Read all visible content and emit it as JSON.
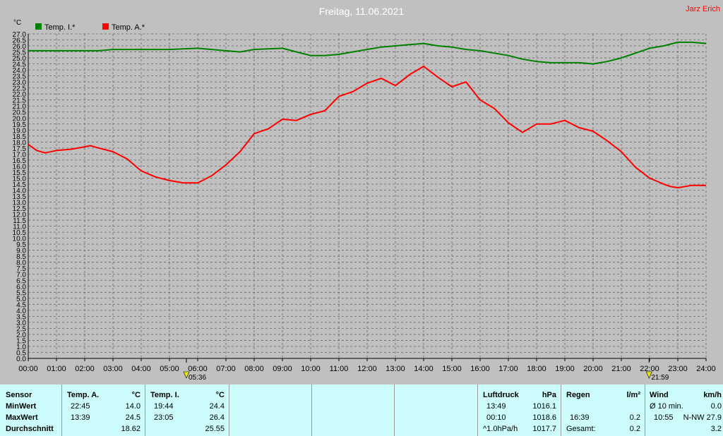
{
  "title": "Freitag, 11.06.2021",
  "author": "Jarz Erich",
  "chart_data": {
    "type": "line",
    "ylabel": "°C",
    "ylim": [
      0,
      27
    ],
    "xlim": [
      0,
      24
    ],
    "grid": true,
    "legend_position": "top-left",
    "x_ticks": [
      "00:00",
      "01:00",
      "02:00",
      "03:00",
      "04:00",
      "05:00",
      "06:00",
      "07:00",
      "08:00",
      "09:00",
      "10:00",
      "11:00",
      "12:00",
      "13:00",
      "14:00",
      "15:00",
      "16:00",
      "17:00",
      "18:00",
      "19:00",
      "20:00",
      "21:00",
      "22:00",
      "23:00",
      "24:00"
    ],
    "y_ticks": [
      "0.0",
      "0.5",
      "1.0",
      "1.5",
      "2.0",
      "2.5",
      "3.0",
      "3.5",
      "4.0",
      "4.5",
      "5.0",
      "5.5",
      "6.0",
      "6.5",
      "7.0",
      "7.5",
      "8.0",
      "8.5",
      "9.0",
      "9.5",
      "10.0",
      "10.5",
      "11.0",
      "11.5",
      "12.0",
      "12.5",
      "13.0",
      "13.5",
      "14.0",
      "14.5",
      "15.0",
      "15.5",
      "16.0",
      "16.5",
      "17.0",
      "17.5",
      "18.0",
      "18.5",
      "19.0",
      "19.5",
      "20.0",
      "20.5",
      "21.0",
      "21.5",
      "22.0",
      "22.5",
      "23.0",
      "23.5",
      "24.0",
      "24.5",
      "25.0",
      "25.5",
      "26.0",
      "26.5",
      "27.0"
    ],
    "sunrise": "05:36",
    "sunset": "21:59",
    "series": [
      {
        "name": "Temp. I.*",
        "color": "#008000",
        "x": [
          0,
          1,
          2,
          2.5,
          3,
          4,
          5,
          6,
          6.5,
          7,
          7.5,
          8,
          9,
          9.5,
          10,
          10.5,
          11,
          12,
          12.5,
          13,
          13.5,
          14,
          14.5,
          15,
          15.5,
          16,
          16.5,
          17,
          17.5,
          18,
          18.5,
          19,
          19.5,
          20,
          20.5,
          21,
          21.5,
          22,
          22.5,
          23,
          23.5,
          24
        ],
        "y": [
          25.6,
          25.6,
          25.6,
          25.6,
          25.7,
          25.7,
          25.7,
          25.8,
          25.7,
          25.6,
          25.5,
          25.7,
          25.8,
          25.5,
          25.2,
          25.2,
          25.3,
          25.7,
          25.9,
          26.0,
          26.1,
          26.2,
          26.0,
          25.9,
          25.7,
          25.6,
          25.4,
          25.2,
          24.9,
          24.7,
          24.6,
          24.6,
          24.6,
          24.5,
          24.7,
          25.0,
          25.4,
          25.8,
          26.0,
          26.3,
          26.3,
          26.2
        ]
      },
      {
        "name": "Temp. A.*",
        "color": "#ff0000",
        "x": [
          0,
          0.3,
          0.6,
          1,
          1.5,
          2,
          2.2,
          2.5,
          3,
          3.5,
          4,
          4.5,
          5,
          5.5,
          6,
          6.5,
          7,
          7.5,
          8,
          8.5,
          9,
          9.5,
          10,
          10.5,
          11,
          11.5,
          12,
          12.5,
          13,
          13.5,
          14,
          14.5,
          15,
          15.5,
          16,
          16.5,
          17,
          17.5,
          18,
          18.5,
          19,
          19.5,
          20,
          20.5,
          21,
          21.5,
          22,
          22.5,
          22.75,
          23,
          23.5,
          24
        ],
        "y": [
          17.8,
          17.3,
          17.1,
          17.3,
          17.4,
          17.6,
          17.7,
          17.5,
          17.2,
          16.6,
          15.6,
          15.1,
          14.8,
          14.6,
          14.6,
          15.2,
          16.1,
          17.2,
          18.7,
          19.1,
          19.9,
          19.8,
          20.3,
          20.6,
          21.8,
          22.2,
          22.9,
          23.3,
          22.7,
          23.6,
          24.3,
          23.4,
          22.6,
          23.0,
          21.5,
          20.8,
          19.6,
          18.8,
          19.5,
          19.5,
          19.8,
          19.2,
          18.9,
          18.1,
          17.2,
          15.9,
          15.0,
          14.5,
          14.3,
          14.2,
          14.4,
          14.4
        ]
      }
    ]
  },
  "stats": {
    "sensor_label": "Sensor",
    "min_label": "MinWert",
    "max_label": "MaxWert",
    "avg_label": "Durchschnitt",
    "temp_a": {
      "header": "Temp. A.",
      "unit": "°C",
      "min_time": "22:45",
      "min": "14.0",
      "max_time": "13:39",
      "max": "24.5",
      "avg": "18.62"
    },
    "temp_i": {
      "header": "Temp. I.",
      "unit": "°C",
      "min_time": "19:44",
      "min": "24.4",
      "max_time": "23:05",
      "max": "26.4",
      "avg": "25.55"
    },
    "pressure": {
      "header": "Luftdruck",
      "unit": "hPa",
      "min_time": "13:49",
      "min": "1016.1",
      "max_time": "00:10",
      "max": "1018.6",
      "trend_label": "^1.0hPa/h",
      "trend": "1017.7"
    },
    "rain": {
      "header": "Regen",
      "unit": "l/m²",
      "time": "16:39",
      "value": "0.2",
      "total_label": "Gesamt:",
      "total": "0.2"
    },
    "wind": {
      "header": "Wind",
      "unit": "km/h",
      "avg10_label": "Ø 10 min.",
      "avg10": "0.0",
      "gust_time": "10:55",
      "gust_dir": "N-NW 27.9",
      "current": "3.2"
    }
  }
}
